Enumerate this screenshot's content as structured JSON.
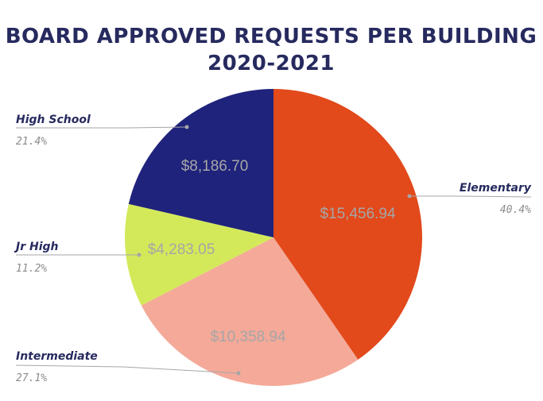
{
  "chart_data": {
    "type": "pie",
    "title_line1": "BOARD APPROVED REQUESTS PER BUILDING",
    "title_line2": "2020-2021",
    "slices": [
      {
        "label": "Elementary",
        "value": 15456.94,
        "value_label": "$15,456.94",
        "percent_label": "40.4%",
        "color": "#e2491b"
      },
      {
        "label": "Intermediate",
        "value": 10358.94,
        "value_label": "$10,358.94",
        "percent_label": "27.1%",
        "color": "#f4a999"
      },
      {
        "label": "Jr High",
        "value": 4283.05,
        "value_label": "$4,283.05",
        "percent_label": "11.2%",
        "color": "#d4e95a"
      },
      {
        "label": "High School",
        "value": 8186.7,
        "value_label": "$8,186.70",
        "percent_label": "21.4%",
        "color": "#1f237b"
      }
    ],
    "legend": "outside labels with leader lines"
  }
}
